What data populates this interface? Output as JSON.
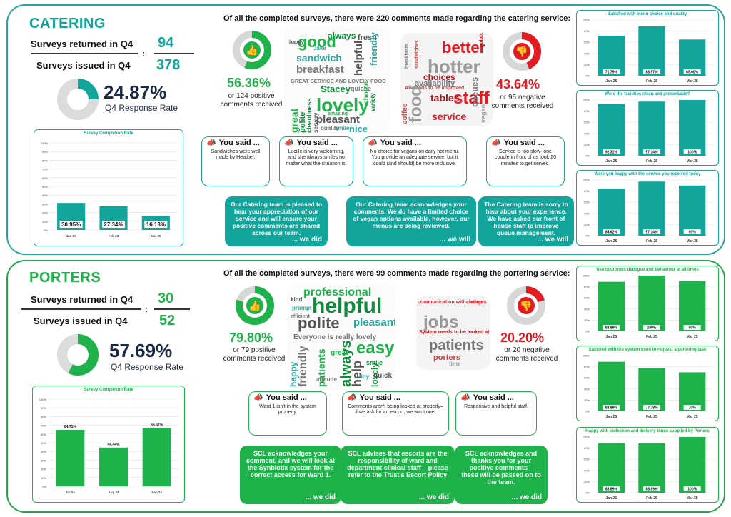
{
  "catering": {
    "title": "CATERING",
    "returned_label": "Surveys returned  in Q4",
    "returned_value": "94",
    "issued_label": "Surveys issued in Q4",
    "issued_value": "378",
    "colon": ":",
    "response_rate": "24.87%",
    "response_label": "Q4 Response Rate",
    "response_fraction": 0.2487,
    "headline": "Of all the completed surveys, there were 220 comments made regarding the catering service:",
    "positive_pct": "56.36%",
    "positive_text": "or 124 positive comments received",
    "positive_fraction": 0.5636,
    "negative_pct": "43.64%",
    "negative_text": "or 96 negative comments received",
    "negative_fraction": 0.4364,
    "cloud_pos": [
      "good",
      "always",
      "fresh",
      "sandwich",
      "breakfast",
      "lovely",
      "Stacey",
      "pleasant",
      "nice",
      "GREAT SERVICE AND LOVELY FOOD",
      "great",
      "polite",
      "helpful",
      "friendly",
      "quiche",
      "amazing",
      "cleanliness",
      "servery",
      "smile",
      "quality",
      "choice",
      "variety",
      "happy",
      "Jake"
    ],
    "cloud_neg": [
      "better",
      "hotter",
      "choices",
      "availability",
      "All needs to be improved",
      "staff",
      "food",
      "tables",
      "queues",
      "coffee",
      "service",
      "vegan",
      "potatoes",
      "breakfasts",
      "sandwiches"
    ],
    "comments": [
      {
        "said": "You said ...",
        "text": "Sandwiches were well made by Heather.",
        "reply": "Our Catering team is pleased to hear your appreciation of our service and will ensure your positive comments are shared across our team.",
        "footer": "... we did"
      },
      {
        "said": "You said ...",
        "text": "Lucille is very welcoming, and she always smiles no matter what the situation is.",
        "reply": "",
        "footer": ""
      },
      {
        "said": "You said ...",
        "text": "No choice for vegans on daily hot menu. You provide an adequate service, but it could (and should) be more inclusive.",
        "reply": "Our Catering team acknowledges your comments.  We do have a limited choice of vegan options available, however, our menus are being reviewed.",
        "footer": "... we will"
      },
      {
        "said": "You said ...",
        "text": "Service is too slow- one couple in front of us took 20 minutes to get served.",
        "reply": "The Catering team is sorry to hear about your experience. We have asked our front of house staff to improve queue management.",
        "footer": "... we will"
      }
    ],
    "completion_chart": {
      "title": "Survey Completion Rate",
      "categories": [
        "Jan 25",
        "Feb 25",
        "Mar 25"
      ],
      "values": [
        30.95,
        27.34,
        16.13
      ],
      "labels": [
        "30.95%",
        "27.34%",
        "16.13%"
      ],
      "yticks": [
        "100%",
        "90%",
        "80%",
        "70%",
        "60%",
        "50%",
        "40%",
        "30%",
        "20%",
        "10%",
        "0%"
      ]
    },
    "side_charts": [
      {
        "title": "Satisfied with menu choice and quality",
        "categories": [
          "Jan-25",
          "Feb-25",
          "Mar-25"
        ],
        "values": [
          71.79,
          88.57,
          65.0
        ],
        "labels": [
          "71.79%",
          "88.57%",
          "65.00%"
        ]
      },
      {
        "title": "Were the facilities clean and presentable?",
        "categories": [
          "Jan-25",
          "Feb-25",
          "Mar-25"
        ],
        "values": [
          92.31,
          97.14,
          100
        ],
        "labels": [
          "92.31%",
          "97.14%",
          "100%"
        ]
      },
      {
        "title": "Were you happy with the service you received today",
        "categories": [
          "Jan-25",
          "Feb-25",
          "Mar-25"
        ],
        "values": [
          84.62,
          97.14,
          90
        ],
        "labels": [
          "84.62%",
          "97.14%",
          "90%"
        ]
      }
    ]
  },
  "porters": {
    "title": "PORTERS",
    "returned_label": "Surveys returned in Q4",
    "returned_value": "30",
    "issued_label": "Surveys issued in Q4",
    "issued_value": "52",
    "colon": ":",
    "response_rate": "57.69%",
    "response_label": "Q4 Response Rate",
    "response_fraction": 0.5769,
    "headline": "Of all the completed surveys, there were 99 comments made regarding the portering service:",
    "positive_pct": "79.80%",
    "positive_text": "or 79 positive comments received",
    "positive_fraction": 0.798,
    "negative_pct": "20.20%",
    "negative_text": "or 20 negative comments received",
    "negative_fraction": 0.202,
    "cloud_pos": [
      "professional",
      "helpful",
      "polite",
      "pleasant",
      "Everyone is really lovely",
      "easy",
      "always",
      "help",
      "happy",
      "friendly",
      "patients",
      "lovely",
      "kind",
      "prompt",
      "efficient",
      "great",
      "smile",
      "quick",
      "tidy",
      "attitude"
    ],
    "cloud_neg": [
      "communication with patients",
      "jobs",
      "System needs to be looked at",
      "patients",
      "porters",
      "change",
      "time"
    ],
    "comments": [
      {
        "said": "You said ...",
        "text": "Ward 1 isn't in the system properly.",
        "reply": "SCL acknowledges your comment, and we will look at the Synbiotix system for the correct access for Ward 1.",
        "footer": "... we did"
      },
      {
        "said": "You said ...",
        "text": "Comments aren't being looked at properly– if we ask for an escort, we want one.",
        "reply": "SCL advises that escorts are the responsibility of ward and department clinical staff – please refer to the Trust's Escort Policy",
        "footer": "... we did"
      },
      {
        "said": "You said ...",
        "text": "Responsive and helpful staff.",
        "reply": "SCL acknowledges and thanks you for your positive comments – these will be passed on to the team.",
        "footer": "... we did"
      }
    ],
    "completion_chart": {
      "title": "Survey Completion Rate",
      "categories": [
        "Jul 24",
        "Aug 24",
        "Sep 24"
      ],
      "values": [
        64.71,
        44.44,
        66.67
      ],
      "labels": [
        "64.71%",
        "44.44%",
        "66.67%"
      ],
      "yticks": [
        "100%",
        "90%",
        "80%",
        "70%",
        "60%",
        "50%",
        "40%",
        "30%",
        "20%",
        "10%",
        "0%"
      ]
    },
    "side_charts": [
      {
        "title": "Use courteous dialogue and behaviour at all times",
        "categories": [
          "Jan 25",
          "Feb 25",
          "Mar 25"
        ],
        "values": [
          88.89,
          100,
          90
        ],
        "labels": [
          "88.89%",
          "100%",
          "90%"
        ]
      },
      {
        "title": "Satisfied with the system used to request a portering task",
        "categories": [
          "Jan 25",
          "Feb 25",
          "Mar 25"
        ],
        "values": [
          88.89,
          77.78,
          70
        ],
        "labels": [
          "88.89%",
          "77.78%",
          "70%"
        ]
      },
      {
        "title": "Happy with collection and delivery times supplied by Porters",
        "categories": [
          "Jan 25",
          "Feb 25",
          "Mar 25"
        ],
        "values": [
          88.89,
          88.89,
          100
        ],
        "labels": [
          "88.89%",
          "88.89%",
          "100%"
        ]
      }
    ]
  },
  "colors": {
    "catering": "#12a59c",
    "porters": "#1fb24a",
    "negative": "#e21b23",
    "navy": "#1b2a44"
  }
}
